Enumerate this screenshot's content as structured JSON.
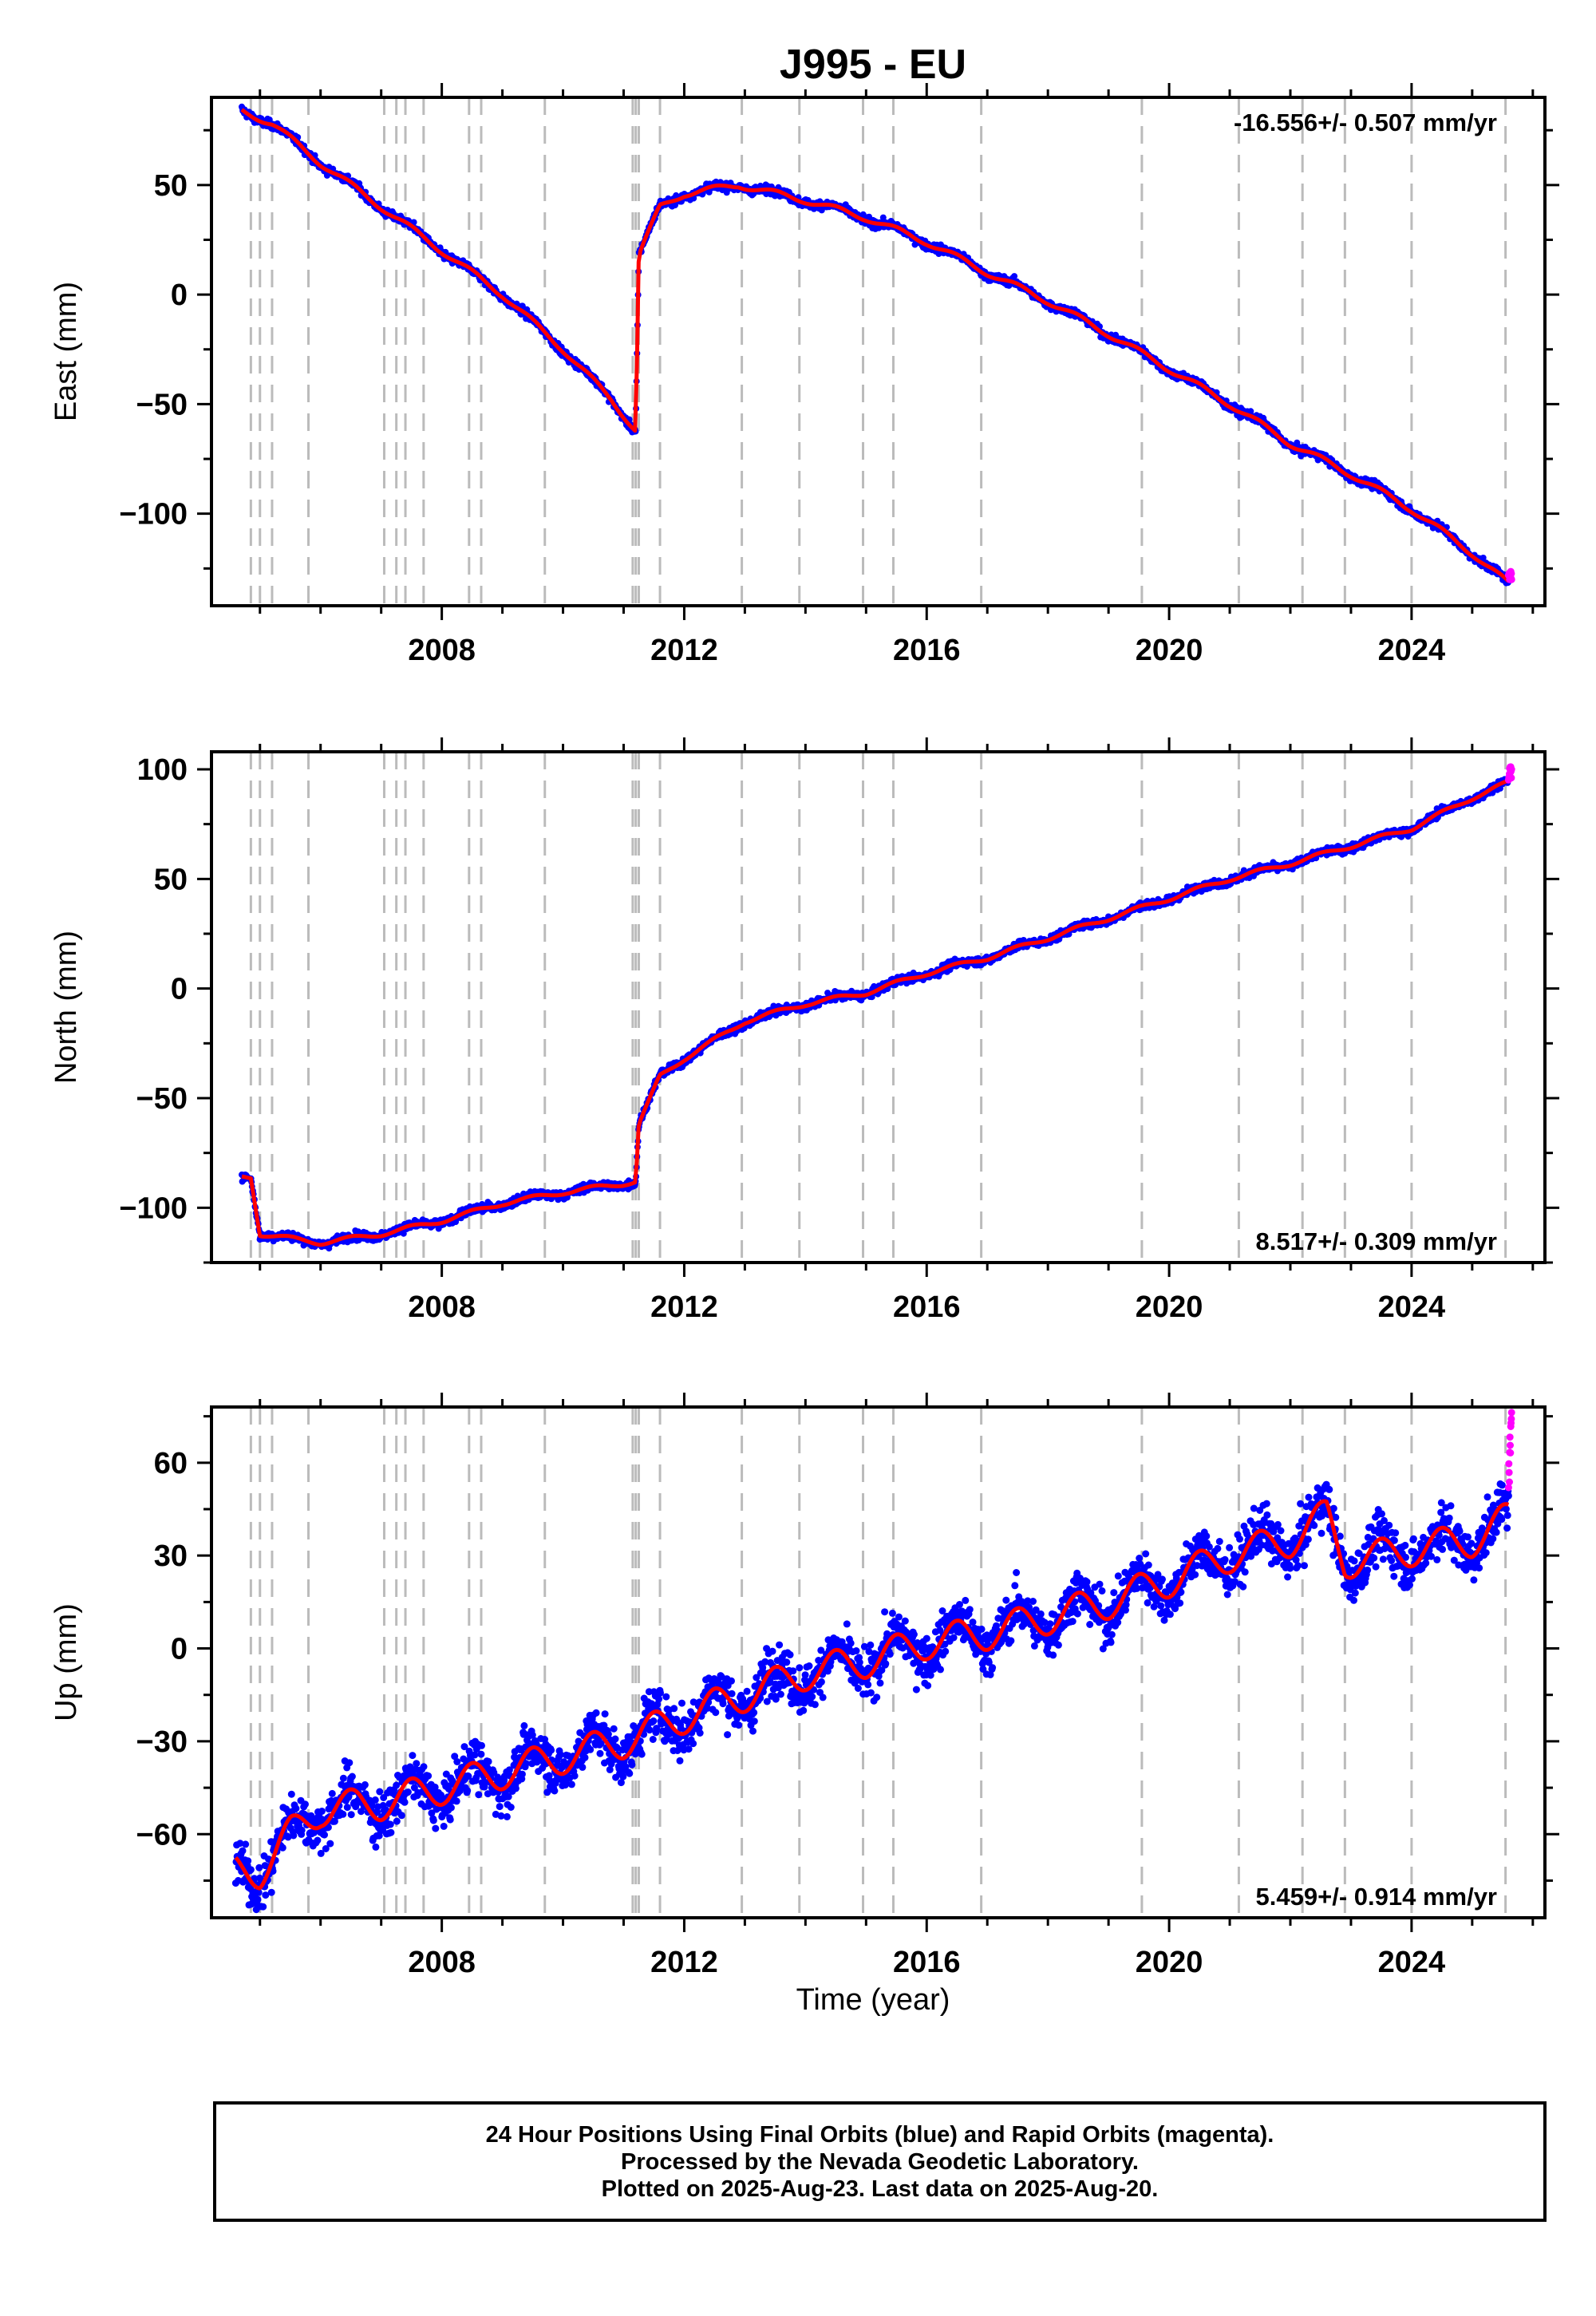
{
  "title": "J995 - EU",
  "x_axis_label": "Time (year)",
  "footer": {
    "line1": "24 Hour Positions Using Final Orbits (blue) and Rapid Orbits (magenta).",
    "line2": "Processed by the Nevada Geodetic Laboratory.",
    "line3": "Plotted on 2025-Aug-23. Last data on 2025-Aug-20."
  },
  "colors": {
    "final_orbits": "#0000ff",
    "rapid_orbits": "#ff00ff",
    "model_fit": "#ff0000",
    "event_lines": "#bbbbbb"
  },
  "chart_data": [
    {
      "type": "scatter",
      "component": "east",
      "ylabel": "East (mm)",
      "rate_label": "-16.556+/- 0.507 mm/yr",
      "xlim": [
        2004.2,
        2026.2
      ],
      "ylim": [
        -142,
        90
      ],
      "x_ticks": [
        2008,
        2012,
        2016,
        2020,
        2024
      ],
      "y_ticks": [
        50,
        0,
        -50,
        -100
      ],
      "events": [
        2004.85,
        2005.0,
        2005.2,
        2005.8,
        2007.05,
        2007.25,
        2007.4,
        2007.7,
        2008.45,
        2008.65,
        2009.7,
        2011.15,
        2011.2,
        2011.25,
        2011.6,
        2012.95,
        2013.9,
        2014.95,
        2015.45,
        2016.9,
        2019.55,
        2021.15,
        2022.2,
        2022.9,
        2024.0,
        2025.55
      ],
      "series": [
        {
          "role": "final",
          "x": [
            2004.7,
            2005.2,
            2006.0,
            2007.0,
            2008.0,
            2009.0,
            2010.0,
            2010.8,
            2011.2,
            2011.25,
            2011.6,
            2012.0,
            2012.9,
            2014.0,
            2015.0,
            2016.0,
            2017.0,
            2018.0,
            2019.0,
            2020.0,
            2021.0,
            2022.0,
            2023.0,
            2024.0,
            2025.0,
            2025.6
          ],
          "y": [
            84,
            78,
            60,
            40,
            20,
            0,
            -25,
            -48,
            -62,
            18,
            40,
            46,
            50,
            43,
            35,
            24,
            10,
            -3,
            -18,
            -34,
            -50,
            -68,
            -82,
            -98,
            -118,
            -132
          ]
        },
        {
          "role": "rapid",
          "x": [
            2025.6,
            2025.65
          ],
          "y": [
            -130,
            -126
          ]
        }
      ]
    },
    {
      "type": "scatter",
      "component": "north",
      "ylabel": "North (mm)",
      "rate_label": "8.517+/- 0.309 mm/yr",
      "xlim": [
        2004.2,
        2026.2
      ],
      "ylim": [
        -125,
        108
      ],
      "x_ticks": [
        2008,
        2012,
        2016,
        2020,
        2024
      ],
      "y_ticks": [
        100,
        50,
        0,
        -50,
        -100
      ],
      "events": [
        2004.85,
        2005.0,
        2005.2,
        2005.8,
        2007.05,
        2007.25,
        2007.4,
        2007.7,
        2008.45,
        2008.65,
        2009.7,
        2011.15,
        2011.2,
        2011.25,
        2011.6,
        2012.95,
        2013.9,
        2014.95,
        2015.45,
        2016.9,
        2019.55,
        2021.15,
        2022.2,
        2022.9,
        2024.0,
        2025.55
      ],
      "series": [
        {
          "role": "final",
          "x": [
            2004.7,
            2004.85,
            2005.0,
            2006.0,
            2007.0,
            2008.0,
            2009.0,
            2010.0,
            2011.0,
            2011.2,
            2011.25,
            2011.6,
            2012.0,
            2013.0,
            2014.0,
            2015.0,
            2016.0,
            2017.0,
            2018.0,
            2019.0,
            2020.0,
            2021.0,
            2022.0,
            2023.0,
            2024.0,
            2025.0,
            2025.6
          ],
          "y": [
            -86,
            -86,
            -112,
            -116,
            -112,
            -106,
            -98,
            -93,
            -89,
            -88,
            -62,
            -40,
            -32,
            -15,
            -7,
            -2,
            7,
            14,
            23,
            32,
            41,
            50,
            57,
            65,
            73,
            87,
            94
          ]
        },
        {
          "role": "rapid",
          "x": [
            2025.6,
            2025.65
          ],
          "y": [
            96,
            100
          ]
        }
      ]
    },
    {
      "type": "scatter",
      "component": "up",
      "ylabel": "Up (mm)",
      "rate_label": "5.459+/- 0.914 mm/yr",
      "xlim": [
        2004.2,
        2026.2
      ],
      "ylim": [
        -87,
        78
      ],
      "x_ticks": [
        2008,
        2012,
        2016,
        2020,
        2024
      ],
      "y_ticks": [
        60,
        30,
        0,
        -30,
        -60
      ],
      "events": [
        2004.85,
        2005.0,
        2005.2,
        2005.8,
        2007.05,
        2007.25,
        2007.4,
        2007.7,
        2008.45,
        2008.65,
        2009.7,
        2011.15,
        2011.2,
        2011.25,
        2011.6,
        2012.95,
        2013.9,
        2014.95,
        2015.45,
        2016.9,
        2019.55,
        2021.15,
        2022.2,
        2022.9,
        2024.0,
        2025.55
      ],
      "series": [
        {
          "role": "final",
          "x": [
            2004.6,
            2005.0,
            2005.5,
            2006.0,
            2007.0,
            2008.0,
            2009.0,
            2010.0,
            2011.0,
            2012.0,
            2013.0,
            2014.0,
            2015.0,
            2016.0,
            2017.0,
            2018.0,
            2019.0,
            2020.0,
            2021.0,
            2022.0,
            2022.6,
            2022.9,
            2023.5,
            2024.0,
            2025.0,
            2025.6
          ],
          "y": [
            -72,
            -72,
            -60,
            -52,
            -50,
            -45,
            -40,
            -35,
            -30,
            -22,
            -15,
            -8,
            -4,
            2,
            5,
            10,
            15,
            22,
            30,
            35,
            43,
            28,
            30,
            32,
            35,
            42
          ]
        },
        {
          "role": "rapid",
          "x": [
            2025.6,
            2025.65
          ],
          "y": [
            55,
            72
          ]
        }
      ]
    }
  ]
}
